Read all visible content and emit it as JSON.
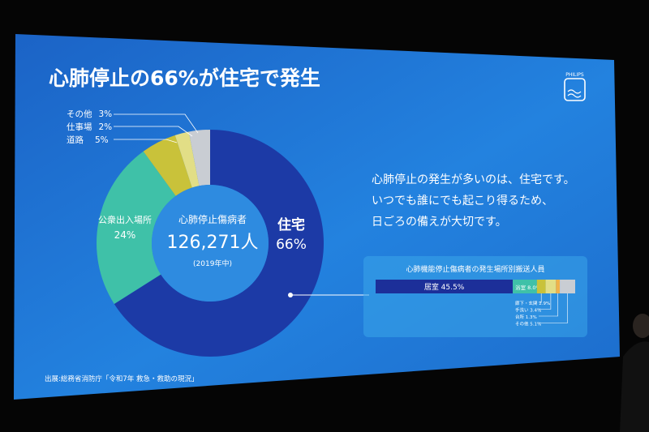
{
  "slide": {
    "title": "心肺停止の66%が住宅で発生",
    "logo_text": "PHILIPS",
    "message_lines": [
      "心肺停止の発生が多いのは、住宅です。",
      "いつでも誰にでも起こり得るため、",
      "日ごろの備えが大切です。"
    ],
    "source": "出展:総務省消防庁「令和7年 救急・救助の現況」",
    "colors": {
      "background": "#1f7ad6",
      "donut_home": "#1c3aa6",
      "donut_public": "#3fc1a8",
      "donut_road": "#c9c23a",
      "donut_work": "#e2de86",
      "donut_other": "#c9cdd3",
      "center_disc": "#2e8be0"
    }
  },
  "chart_data": [
    {
      "type": "pie",
      "title": "",
      "center": {
        "label": "心肺停止傷病者",
        "value": "126,271人",
        "note": "(2019年中)"
      },
      "slices": [
        {
          "name": "住宅",
          "value": 66,
          "label": "66%"
        },
        {
          "name": "公衆出入場所",
          "value": 24,
          "label": "24%"
        },
        {
          "name": "道路",
          "value": 5,
          "label": "5%"
        },
        {
          "name": "仕事場",
          "value": 2,
          "label": "2%"
        },
        {
          "name": "その他",
          "value": 3,
          "label": "3%"
        }
      ]
    },
    {
      "type": "bar",
      "title": "心肺機能停止傷病者の発生場所別搬送人員",
      "segments": [
        {
          "name": "居室",
          "value": 45.5,
          "label": "45.5%"
        },
        {
          "name": "浴室",
          "value": 8.0,
          "label": "8.0%"
        },
        {
          "name": "廊下・玄関",
          "value": 2.9,
          "label": "2.9%"
        },
        {
          "name": "手洗い",
          "value": 3.4,
          "label": "3.4%"
        },
        {
          "name": "台所",
          "value": 1.3,
          "label": "1.3%"
        },
        {
          "name": "その他",
          "value": 5.1,
          "label": "5.1%"
        }
      ]
    }
  ]
}
